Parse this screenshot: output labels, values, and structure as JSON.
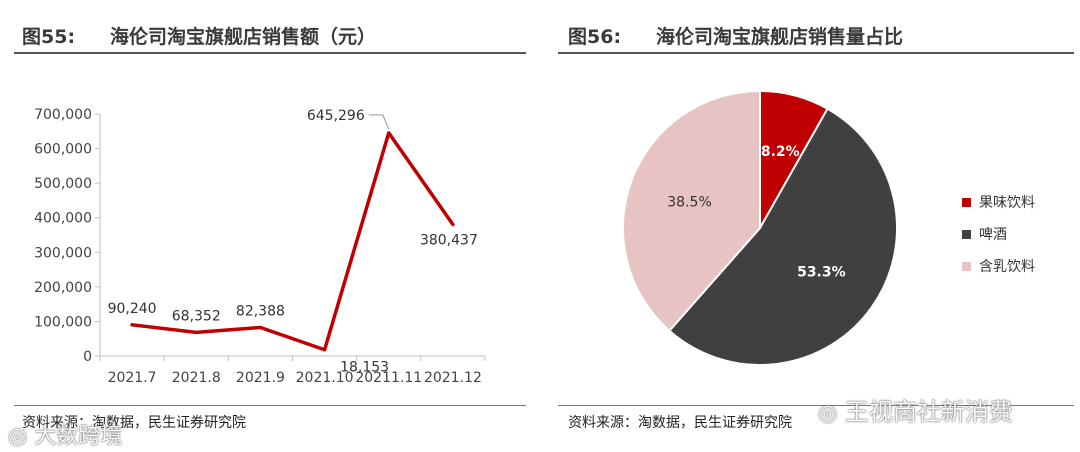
{
  "figures": [
    {
      "number": "图55:",
      "title": "海伦司淘宝旗舰店销售额（元）",
      "source": "资料来源：淘数据，民生证券研究院"
    },
    {
      "number": "图56:",
      "title": "海伦司淘宝旗舰店销售量占比",
      "source": "资料来源：淘数据，民生证券研究院"
    }
  ],
  "chart_data": [
    {
      "type": "line",
      "title": "海伦司淘宝旗舰店销售额（元）",
      "categories": [
        "2021.7",
        "2021.8",
        "2021.9",
        "2021.10",
        "20211.11",
        "2021.12"
      ],
      "series": [
        {
          "values": [
            90240,
            68352,
            82388,
            18153,
            645296,
            380437
          ],
          "labels": [
            "90,240",
            "68,352",
            "82,388",
            "18,153",
            "645,296",
            "380,437"
          ],
          "color": "#c00000"
        }
      ],
      "ylim": [
        0,
        700000
      ],
      "yticks": [
        0,
        100000,
        200000,
        300000,
        400000,
        500000,
        600000,
        700000
      ],
      "ytick_labels": [
        "0",
        "100,000",
        "200,000",
        "300,000",
        "400,000",
        "500,000",
        "600,000",
        "700,000"
      ],
      "grid": false
    },
    {
      "type": "pie",
      "title": "海伦司淘宝旗舰店销售量占比",
      "slices": [
        {
          "name": "果味饮料",
          "value": 8.2,
          "label": "8.2%",
          "color": "#c00000",
          "label_color": "#ffffff"
        },
        {
          "name": "啤酒",
          "value": 53.3,
          "label": "53.3%",
          "color": "#404040",
          "label_color": "#ffffff"
        },
        {
          "name": "含乳饮料",
          "value": 38.5,
          "label": "38.5%",
          "color": "#e8c3c3",
          "label_color": "#333333"
        }
      ],
      "legend": "right"
    }
  ],
  "watermarks": {
    "left": "大数跨境",
    "right": "王视商社新消费",
    "icon": "wechat-icon"
  }
}
